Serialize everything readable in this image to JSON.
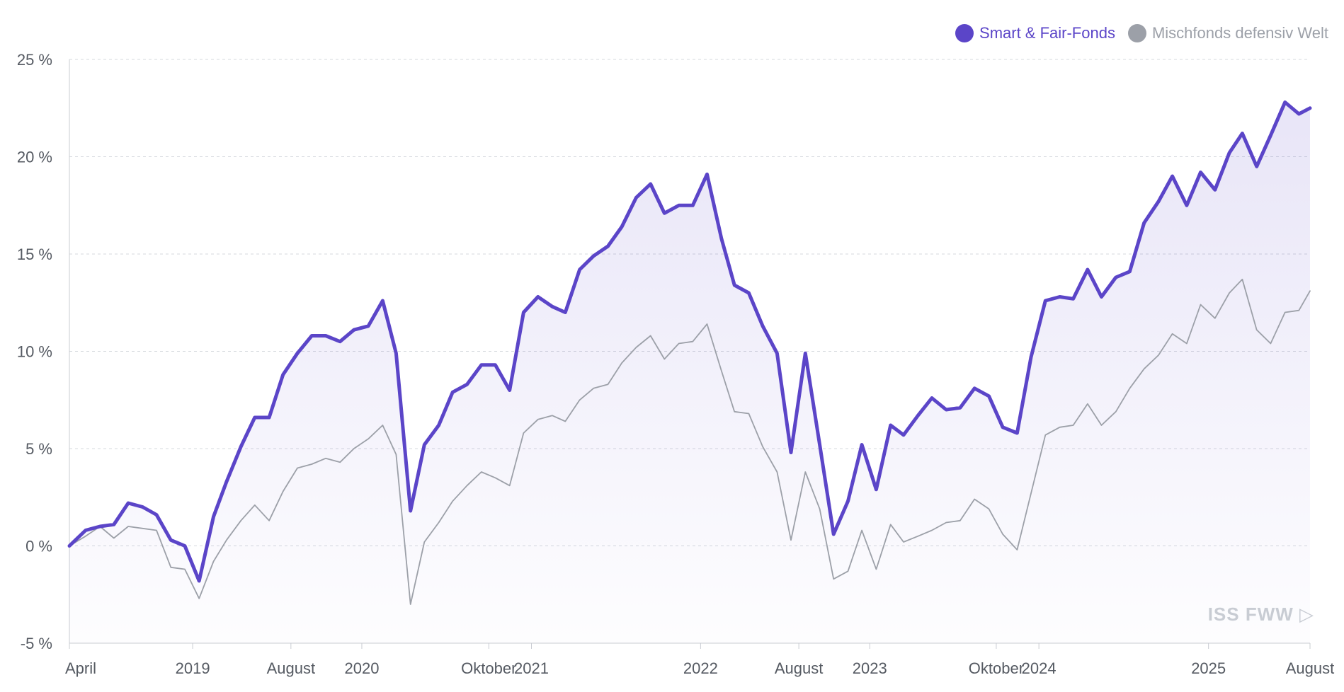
{
  "legend": {
    "items": [
      {
        "label": "Smart & Fair-Fonds",
        "color": "#5b45c8"
      },
      {
        "label": "Mischfonds defensiv Welt",
        "color": "#9ca0a8"
      }
    ]
  },
  "watermark": {
    "text": "ISS FWW ▷"
  },
  "chart_data": {
    "type": "line",
    "title": "",
    "xlabel": "",
    "ylabel": "",
    "ylim": [
      -5,
      25
    ],
    "y_ticks": [
      -5,
      0,
      5,
      10,
      15,
      20,
      25
    ],
    "y_tick_labels": [
      "-5 %",
      "0 %",
      "5 %",
      "10 %",
      "15 %",
      "20 %",
      "25 %"
    ],
    "x_range": [
      "2018-04-10",
      "2025-08-08"
    ],
    "x_ticks": [
      {
        "date": "2018-04-10",
        "label": "April"
      },
      {
        "date": "2019-01-01",
        "label": "2019"
      },
      {
        "date": "2019-08-01",
        "label": "August"
      },
      {
        "date": "2020-01-01",
        "label": "2020"
      },
      {
        "date": "2020-10-01",
        "label": "Oktober"
      },
      {
        "date": "2021-01-01",
        "label": "2021"
      },
      {
        "date": "2022-01-01",
        "label": "2022"
      },
      {
        "date": "2022-08-01",
        "label": "August"
      },
      {
        "date": "2023-01-01",
        "label": "2023"
      },
      {
        "date": "2023-10-01",
        "label": "Oktober"
      },
      {
        "date": "2024-01-01",
        "label": "2024"
      },
      {
        "date": "2025-01-01",
        "label": "2025"
      },
      {
        "date": "2025-08-08",
        "label": "August"
      }
    ],
    "grid": true,
    "legend_position": "top-right",
    "series": [
      {
        "name": "Smart & Fair-Fonds",
        "color": "#5b45c8",
        "x": [
          "2018-04-10",
          "2018-05-15",
          "2018-06-15",
          "2018-07-15",
          "2018-08-15",
          "2018-09-15",
          "2018-10-15",
          "2018-11-15",
          "2018-12-15",
          "2019-01-15",
          "2019-02-15",
          "2019-03-15",
          "2019-04-15",
          "2019-05-15",
          "2019-06-15",
          "2019-07-15",
          "2019-08-15",
          "2019-09-15",
          "2019-10-15",
          "2019-11-15",
          "2019-12-15",
          "2020-01-15",
          "2020-02-15",
          "2020-03-15",
          "2020-04-15",
          "2020-05-15",
          "2020-06-15",
          "2020-07-15",
          "2020-08-15",
          "2020-09-15",
          "2020-10-15",
          "2020-11-15",
          "2020-12-15",
          "2021-01-15",
          "2021-02-15",
          "2021-03-15",
          "2021-04-15",
          "2021-05-15",
          "2021-06-15",
          "2021-07-15",
          "2021-08-15",
          "2021-09-15",
          "2021-10-15",
          "2021-11-15",
          "2021-12-15",
          "2022-01-15",
          "2022-02-15",
          "2022-03-15",
          "2022-04-15",
          "2022-05-15",
          "2022-06-15",
          "2022-07-15",
          "2022-08-15",
          "2022-09-15",
          "2022-10-15",
          "2022-11-15",
          "2022-12-15",
          "2023-01-15",
          "2023-02-15",
          "2023-03-15",
          "2023-04-15",
          "2023-05-15",
          "2023-06-15",
          "2023-07-15",
          "2023-08-15",
          "2023-09-15",
          "2023-10-15",
          "2023-11-15",
          "2023-12-15",
          "2024-01-15",
          "2024-02-15",
          "2024-03-15",
          "2024-04-15",
          "2024-05-15",
          "2024-06-15",
          "2024-07-15",
          "2024-08-15",
          "2024-09-15",
          "2024-10-15",
          "2024-11-15",
          "2024-12-15",
          "2025-01-15",
          "2025-02-15",
          "2025-03-15",
          "2025-04-15",
          "2025-05-15",
          "2025-06-15",
          "2025-07-15",
          "2025-08-08"
        ],
        "values": [
          0,
          0.8,
          1.0,
          1.1,
          2.2,
          2.0,
          1.6,
          0.3,
          0.0,
          -1.8,
          1.5,
          3.3,
          5.1,
          6.6,
          6.6,
          8.8,
          9.9,
          10.8,
          10.8,
          10.5,
          11.1,
          11.3,
          12.6,
          9.9,
          1.8,
          5.2,
          6.2,
          7.9,
          8.3,
          9.3,
          9.3,
          8.0,
          12.0,
          12.8,
          12.3,
          12.0,
          14.2,
          14.9,
          15.4,
          16.4,
          17.9,
          18.6,
          17.1,
          17.5,
          17.5,
          19.1,
          15.8,
          13.4,
          13.0,
          11.3,
          9.9,
          4.8,
          9.9,
          5.2,
          0.6,
          2.3,
          5.2,
          2.9,
          6.2,
          5.7,
          6.7,
          7.6,
          7.0,
          7.1,
          8.1,
          7.7,
          6.1,
          5.8,
          9.7,
          12.6,
          12.8,
          12.7,
          14.2,
          12.8,
          13.8,
          14.1,
          16.6,
          17.7,
          19.0,
          17.5,
          19.2,
          18.3,
          20.2,
          21.2,
          19.5,
          21.1,
          22.8,
          22.2,
          22.5
        ]
      },
      {
        "name": "Mischfonds defensiv Welt",
        "color": "#9ca0a8",
        "x": [
          "2018-04-10",
          "2018-05-15",
          "2018-06-15",
          "2018-07-15",
          "2018-08-15",
          "2018-09-15",
          "2018-10-15",
          "2018-11-15",
          "2018-12-15",
          "2019-01-15",
          "2019-02-15",
          "2019-03-15",
          "2019-04-15",
          "2019-05-15",
          "2019-06-15",
          "2019-07-15",
          "2019-08-15",
          "2019-09-15",
          "2019-10-15",
          "2019-11-15",
          "2019-12-15",
          "2020-01-15",
          "2020-02-15",
          "2020-03-15",
          "2020-04-15",
          "2020-05-15",
          "2020-06-15",
          "2020-07-15",
          "2020-08-15",
          "2020-09-15",
          "2020-10-15",
          "2020-11-15",
          "2020-12-15",
          "2021-01-15",
          "2021-02-15",
          "2021-03-15",
          "2021-04-15",
          "2021-05-15",
          "2021-06-15",
          "2021-07-15",
          "2021-08-15",
          "2021-09-15",
          "2021-10-15",
          "2021-11-15",
          "2021-12-15",
          "2022-01-15",
          "2022-02-15",
          "2022-03-15",
          "2022-04-15",
          "2022-05-15",
          "2022-06-15",
          "2022-07-15",
          "2022-08-15",
          "2022-09-15",
          "2022-10-15",
          "2022-11-15",
          "2022-12-15",
          "2023-01-15",
          "2023-02-15",
          "2023-03-15",
          "2023-04-15",
          "2023-05-15",
          "2023-06-15",
          "2023-07-15",
          "2023-08-15",
          "2023-09-15",
          "2023-10-15",
          "2023-11-15",
          "2023-12-15",
          "2024-01-15",
          "2024-02-15",
          "2024-03-15",
          "2024-04-15",
          "2024-05-15",
          "2024-06-15",
          "2024-07-15",
          "2024-08-15",
          "2024-09-15",
          "2024-10-15",
          "2024-11-15",
          "2024-12-15",
          "2025-01-15",
          "2025-02-15",
          "2025-03-15",
          "2025-04-15",
          "2025-05-15",
          "2025-06-15",
          "2025-07-15",
          "2025-08-08"
        ],
        "values": [
          0,
          0.5,
          1.0,
          0.4,
          1.0,
          0.9,
          0.8,
          -1.1,
          -1.2,
          -2.7,
          -0.8,
          0.3,
          1.3,
          2.1,
          1.3,
          2.8,
          4.0,
          4.2,
          4.5,
          4.3,
          5.0,
          5.5,
          6.2,
          4.7,
          -3.0,
          0.2,
          1.2,
          2.3,
          3.1,
          3.8,
          3.5,
          3.1,
          5.8,
          6.5,
          6.7,
          6.4,
          7.5,
          8.1,
          8.3,
          9.4,
          10.2,
          10.8,
          9.6,
          10.4,
          10.5,
          11.4,
          9.0,
          6.9,
          6.8,
          5.1,
          3.8,
          0.3,
          3.8,
          1.9,
          -1.7,
          -1.3,
          0.8,
          -1.2,
          1.1,
          0.2,
          0.5,
          0.8,
          1.2,
          1.3,
          2.4,
          1.9,
          0.6,
          -0.2,
          2.7,
          5.7,
          6.1,
          6.2,
          7.3,
          6.2,
          6.9,
          8.1,
          9.1,
          9.8,
          10.9,
          10.4,
          12.4,
          11.7,
          13.0,
          13.7,
          11.1,
          10.4,
          12.0,
          12.1,
          13.1
        ]
      }
    ]
  }
}
